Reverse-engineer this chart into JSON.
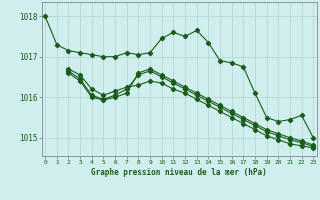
{
  "title": "Graphe pression niveau de la mer (hPa)",
  "bg_color": "#d0eeee",
  "grid_color": "#b8d8d8",
  "line_color": "#1a5c1a",
  "x_ticks": [
    0,
    1,
    2,
    3,
    4,
    5,
    6,
    7,
    8,
    9,
    10,
    11,
    12,
    13,
    14,
    15,
    16,
    17,
    18,
    19,
    20,
    21,
    22,
    23
  ],
  "y_ticks": [
    1015,
    1016,
    1017,
    1018
  ],
  "ylim": [
    1014.55,
    1018.35
  ],
  "xlim": [
    -0.3,
    23.3
  ],
  "series1": {
    "x": [
      0,
      1,
      2,
      3,
      4,
      5,
      6,
      7,
      8,
      9,
      10,
      11,
      12,
      13,
      14,
      15,
      16,
      17,
      18,
      19,
      20,
      21,
      22,
      23
    ],
    "y": [
      1018.0,
      1017.3,
      1017.15,
      1017.1,
      1017.05,
      1017.0,
      1017.0,
      1017.1,
      1017.05,
      1017.1,
      1017.45,
      1017.6,
      1017.5,
      1017.65,
      1017.35,
      1016.9,
      1016.85,
      1016.75,
      1016.1,
      1015.5,
      1015.4,
      1015.45,
      1015.55,
      1015.0
    ]
  },
  "series2": {
    "x": [
      2,
      3,
      4,
      5,
      6,
      7,
      8,
      9,
      10,
      11,
      12,
      13,
      14,
      15,
      16,
      17,
      18,
      19,
      20,
      21,
      22,
      23
    ],
    "y": [
      1016.7,
      1016.55,
      1016.2,
      1016.05,
      1016.15,
      1016.25,
      1016.3,
      1016.4,
      1016.35,
      1016.2,
      1016.1,
      1015.95,
      1015.8,
      1015.65,
      1015.5,
      1015.35,
      1015.2,
      1015.05,
      1014.95,
      1014.85,
      1014.8,
      1014.75
    ]
  },
  "series3": {
    "x": [
      2,
      3,
      4,
      5,
      6,
      7,
      8,
      9,
      10,
      11,
      12,
      13,
      14,
      15,
      16,
      17,
      18,
      19,
      20,
      21,
      22,
      23
    ],
    "y": [
      1016.65,
      1016.45,
      1016.05,
      1015.95,
      1016.05,
      1016.2,
      1016.55,
      1016.65,
      1016.5,
      1016.35,
      1016.2,
      1016.05,
      1015.9,
      1015.75,
      1015.6,
      1015.45,
      1015.3,
      1015.15,
      1015.05,
      1014.95,
      1014.88,
      1014.78
    ]
  },
  "series4": {
    "x": [
      2,
      3,
      4,
      5,
      6,
      7,
      8,
      9,
      10,
      11,
      12,
      13,
      14,
      15,
      16,
      17,
      18,
      19,
      20,
      21,
      22,
      23
    ],
    "y": [
      1016.6,
      1016.4,
      1016.0,
      1015.93,
      1016.0,
      1016.1,
      1016.6,
      1016.7,
      1016.55,
      1016.4,
      1016.25,
      1016.1,
      1015.95,
      1015.8,
      1015.65,
      1015.5,
      1015.35,
      1015.2,
      1015.1,
      1015.0,
      1014.92,
      1014.82
    ]
  }
}
